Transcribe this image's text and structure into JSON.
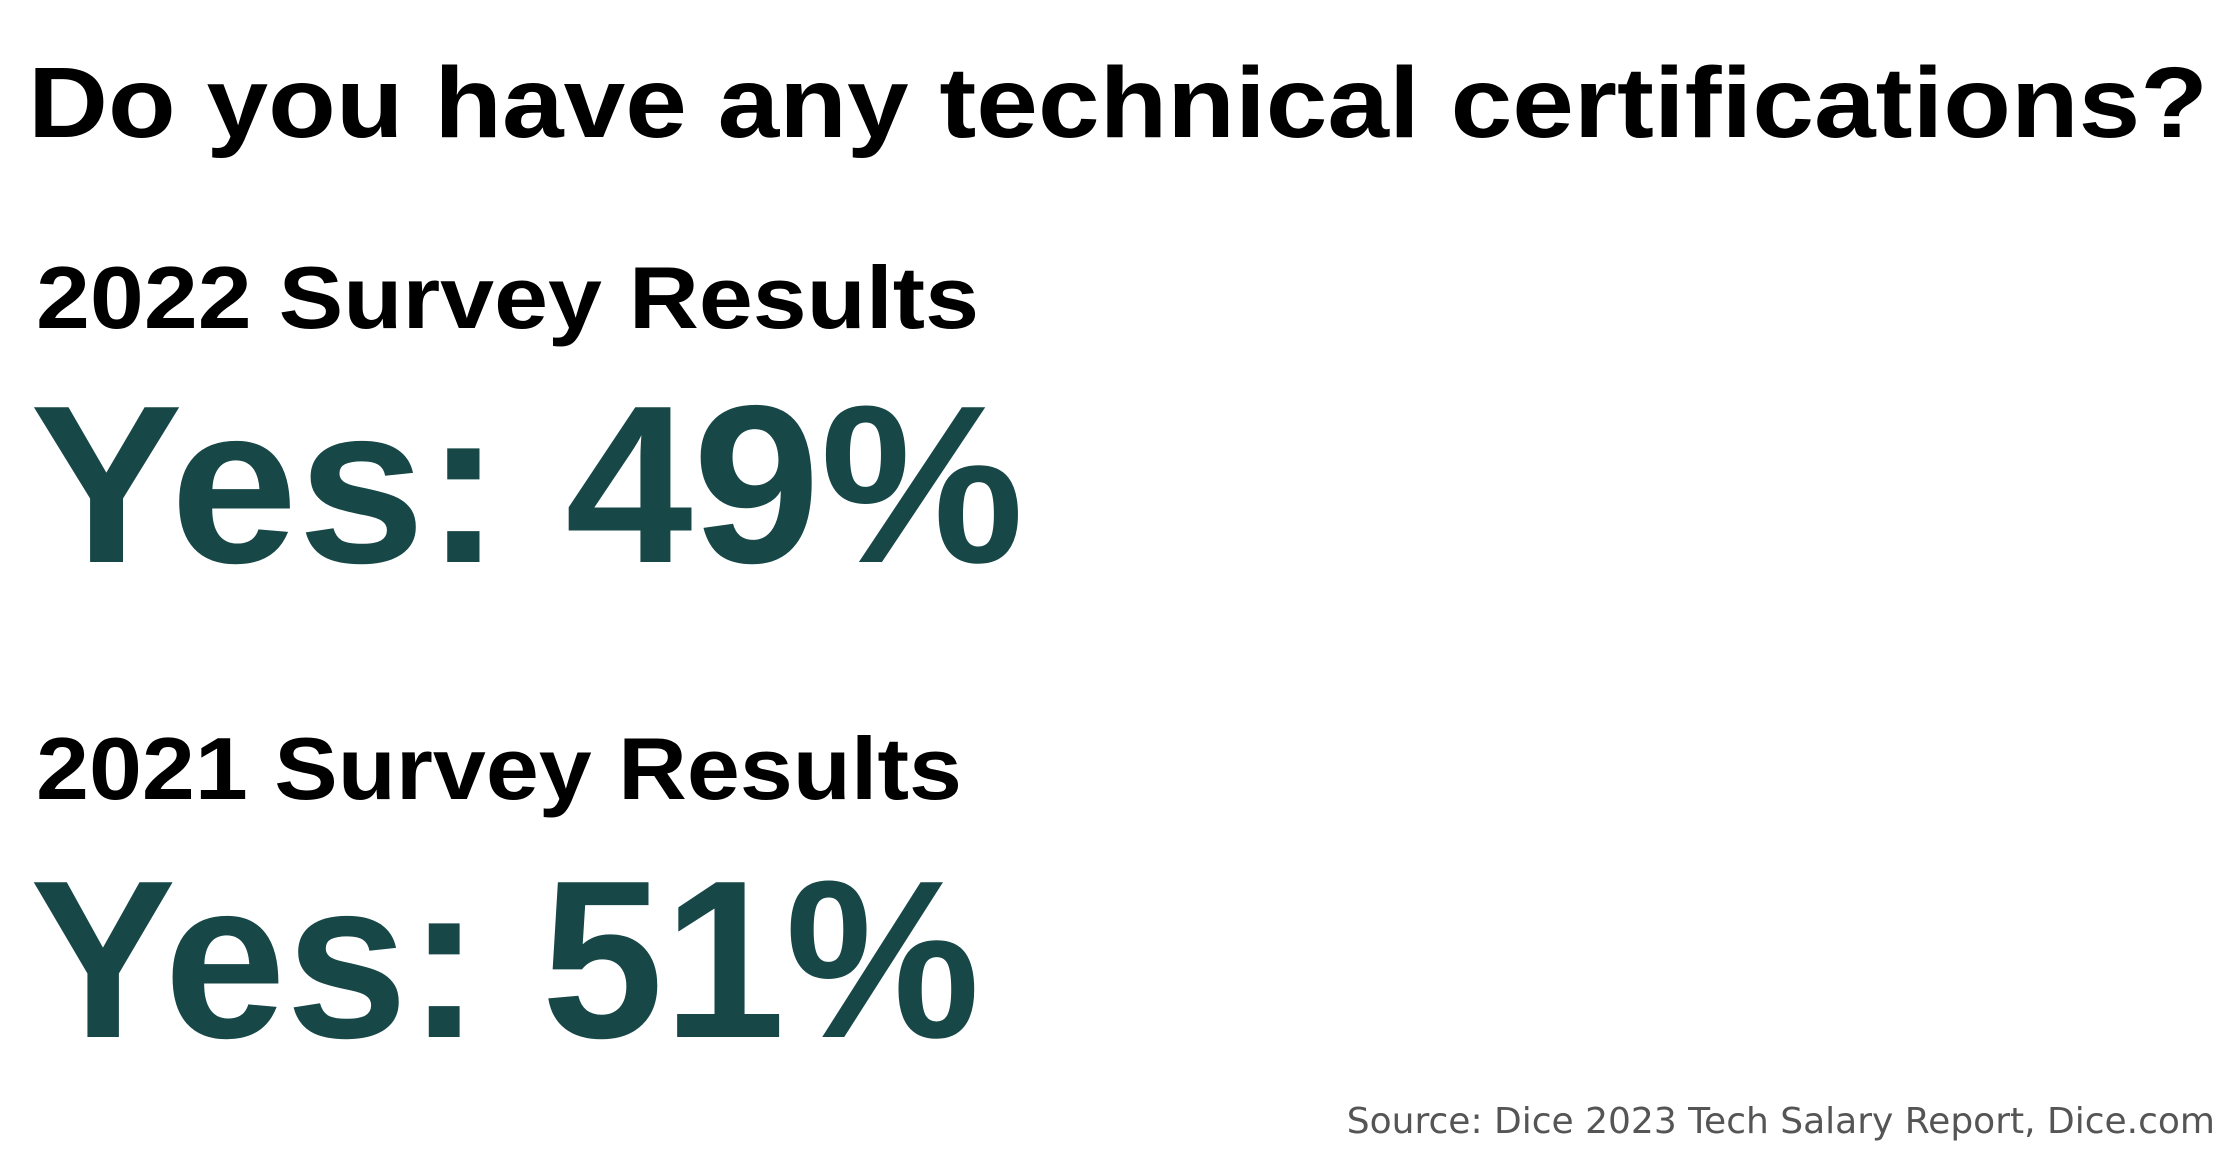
{
  "title": "Do you have any technical certifications?",
  "sections": [
    {
      "heading": "2022 Survey Results",
      "result": "Yes: 49%"
    },
    {
      "heading": "2021 Survey Results",
      "result": "Yes: 51%"
    }
  ],
  "source": "Source: Dice 2023 Tech Salary Report, Dice.com"
}
